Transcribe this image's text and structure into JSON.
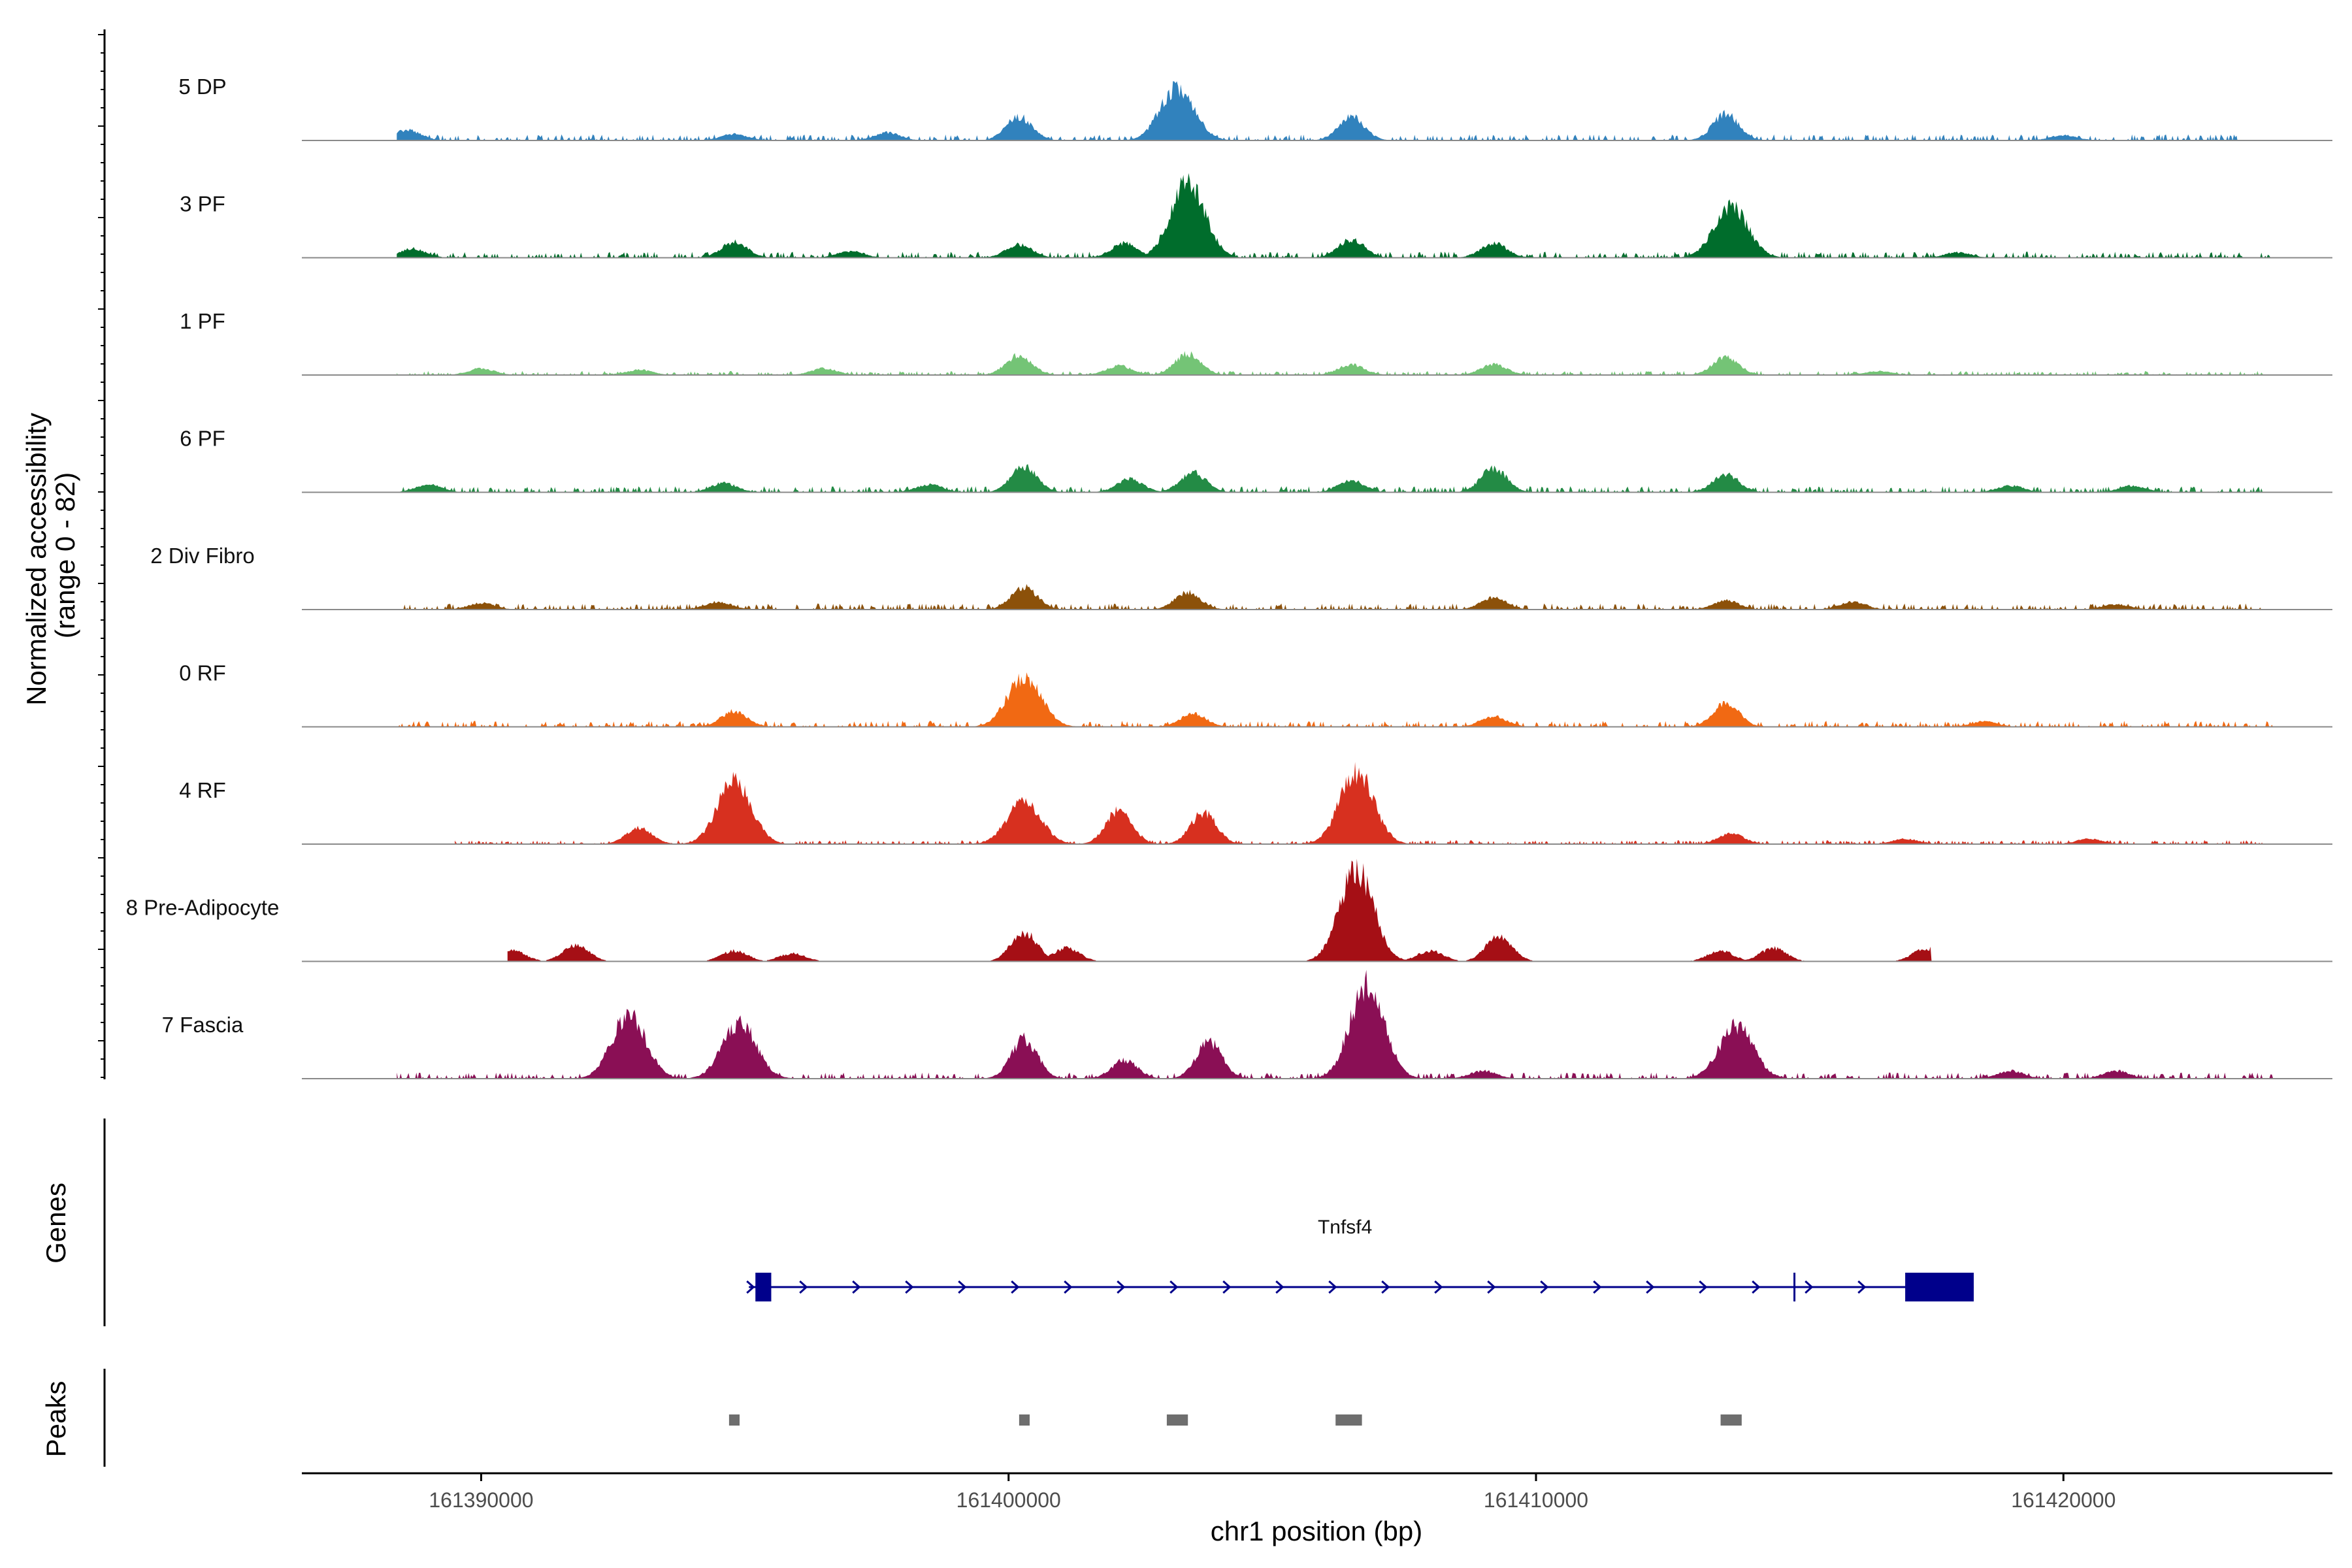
{
  "chart_data": {
    "type": "area",
    "title": "",
    "ylabel_line1": "Normalized accessibility",
    "ylabel_line2": "(range 0 - 82)",
    "yrange": [
      0,
      82
    ],
    "xlabel": "chr1 position (bp)",
    "xlim": [
      161386600,
      161425100
    ],
    "xticks": [
      161390000,
      161400000,
      161410000,
      161420000
    ],
    "xtick_labels": [
      "161390000",
      "161400000",
      "161410000",
      "161420000"
    ],
    "tracks": [
      {
        "name": "5 DP",
        "color": "#3182bd",
        "coverage": [
          161388400,
          161423300
        ],
        "base": 3,
        "peaks": [
          [
            161388600,
            8
          ],
          [
            161394800,
            5
          ],
          [
            161397700,
            6
          ],
          [
            161400200,
            18
          ],
          [
            161403200,
            40
          ],
          [
            161406500,
            18
          ],
          [
            161413600,
            20
          ],
          [
            161420000,
            4
          ]
        ]
      },
      {
        "name": "3 PF",
        "color": "#006d2c",
        "coverage": [
          161388400,
          161424000
        ],
        "base": 3,
        "peaks": [
          [
            161388700,
            7
          ],
          [
            161394800,
            12
          ],
          [
            161397000,
            5
          ],
          [
            161400200,
            10
          ],
          [
            161402200,
            11
          ],
          [
            161403400,
            58
          ],
          [
            161406500,
            14
          ],
          [
            161409200,
            11
          ],
          [
            161413700,
            38
          ],
          [
            161418000,
            4
          ]
        ]
      },
      {
        "name": "1 PF",
        "color": "#74c476",
        "coverage": [
          161388400,
          161423800
        ],
        "base": 2,
        "peaks": [
          [
            161390000,
            5
          ],
          [
            161393000,
            4
          ],
          [
            161396500,
            5
          ],
          [
            161400200,
            15
          ],
          [
            161402100,
            7
          ],
          [
            161403400,
            16
          ],
          [
            161406500,
            8
          ],
          [
            161409200,
            8
          ],
          [
            161413600,
            14
          ],
          [
            161416500,
            3
          ]
        ]
      },
      {
        "name": "6 PF",
        "color": "#238b45",
        "coverage": [
          161388400,
          161423800
        ],
        "base": 3,
        "peaks": [
          [
            161389000,
            6
          ],
          [
            161394600,
            7
          ],
          [
            161398500,
            6
          ],
          [
            161400300,
            20
          ],
          [
            161402300,
            10
          ],
          [
            161403500,
            15
          ],
          [
            161406500,
            9
          ],
          [
            161409200,
            18
          ],
          [
            161413600,
            14
          ],
          [
            161419000,
            5
          ],
          [
            161421300,
            5
          ]
        ]
      },
      {
        "name": "2 Div Fibro",
        "color": "#8c510a",
        "coverage": [
          161388400,
          161423800
        ],
        "base": 3,
        "peaks": [
          [
            161390000,
            5
          ],
          [
            161394500,
            6
          ],
          [
            161400300,
            17
          ],
          [
            161403400,
            13
          ],
          [
            161409200,
            9
          ],
          [
            161413600,
            7
          ],
          [
            161416000,
            6
          ],
          [
            161421000,
            4
          ]
        ]
      },
      {
        "name": "0 RF",
        "color": "#f16913",
        "coverage": [
          161388400,
          161424000
        ],
        "base": 3,
        "peaks": [
          [
            161394800,
            12
          ],
          [
            161400300,
            38
          ],
          [
            161403500,
            10
          ],
          [
            161409200,
            8
          ],
          [
            161413600,
            18
          ],
          [
            161418500,
            4
          ]
        ]
      },
      {
        "name": "4 RF",
        "color": "#d7301f",
        "coverage": [
          161389500,
          161423800
        ],
        "base": 2,
        "peaks": [
          [
            161393000,
            12
          ],
          [
            161394800,
            48
          ],
          [
            161400300,
            32
          ],
          [
            161402100,
            26
          ],
          [
            161403700,
            24
          ],
          [
            161406600,
            55
          ],
          [
            161413700,
            8
          ],
          [
            161417000,
            4
          ],
          [
            161420500,
            4
          ]
        ]
      },
      {
        "name": "8 Pre-Adipocyte",
        "color": "#a50f15",
        "coverage": [
          161390500,
          161417500
        ],
        "base": 0,
        "peaks": [
          [
            161390600,
            8
          ],
          [
            161391800,
            12
          ],
          [
            161394800,
            8
          ],
          [
            161395900,
            6
          ],
          [
            161400300,
            22
          ],
          [
            161401100,
            10
          ],
          [
            161406600,
            70
          ],
          [
            161408000,
            8
          ],
          [
            161409300,
            20
          ],
          [
            161413500,
            8
          ],
          [
            161414500,
            10
          ],
          [
            161417400,
            10
          ]
        ]
      },
      {
        "name": "7 Fascia",
        "color": "#8a0f55",
        "coverage": [
          161388400,
          161424000
        ],
        "base": 3,
        "peaks": [
          [
            161392800,
            48
          ],
          [
            161394900,
            42
          ],
          [
            161400300,
            30
          ],
          [
            161402200,
            14
          ],
          [
            161403800,
            28
          ],
          [
            161406800,
            72
          ],
          [
            161409000,
            6
          ],
          [
            161413800,
            40
          ],
          [
            161419000,
            6
          ],
          [
            161421000,
            6
          ]
        ]
      }
    ],
    "genes": [
      {
        "name": "Tnfsf4",
        "color": "#00008b",
        "start": 161395200,
        "end": 161418300,
        "strand": "+",
        "exons": [
          [
            161395200,
            161395500
          ],
          [
            161417000,
            161418300
          ]
        ],
        "marker": 161414900
      }
    ],
    "peak_regions": [
      [
        161394700,
        161394900
      ],
      [
        161400200,
        161400400
      ],
      [
        161403000,
        161403400
      ],
      [
        161406200,
        161406700
      ],
      [
        161413500,
        161413900
      ]
    ],
    "panel_titles": {
      "genes": "Genes",
      "peaks": "Peaks"
    }
  }
}
